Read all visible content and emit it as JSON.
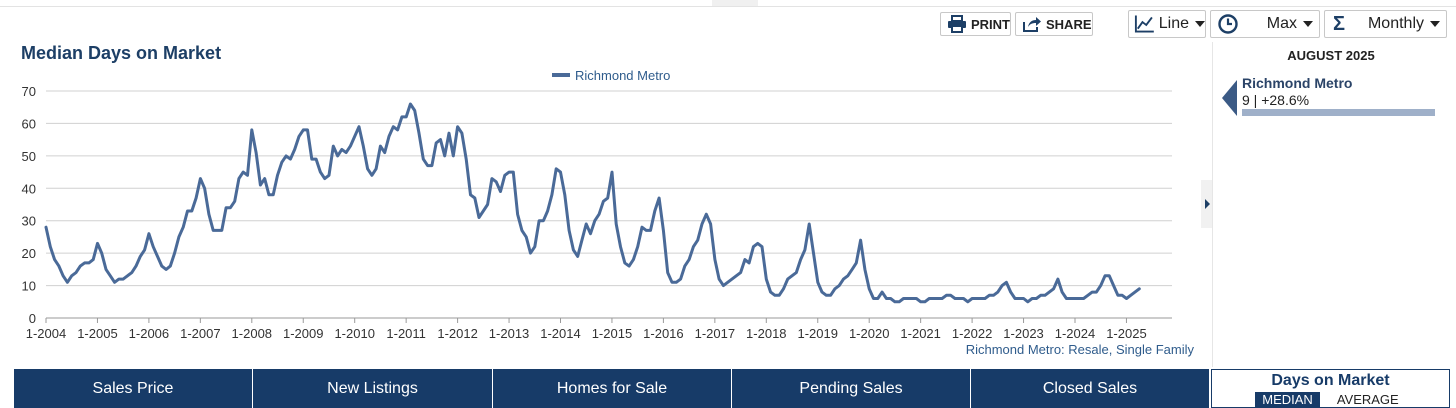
{
  "toolbar": {
    "print_label": "PRINT",
    "share_label": "SHARE",
    "chart_type": "Line",
    "range": "Max",
    "interval": "Monthly"
  },
  "legend": {
    "series_name": "Richmond Metro"
  },
  "source_label": "Richmond Metro: Resale, Single Family",
  "side_panel": {
    "date": "AUGUST 2025",
    "region": "Richmond Metro",
    "value_text": "9 | +28.6%"
  },
  "tabs": [
    "Sales Price",
    "New Listings",
    "Homes for Sale",
    "Pending Sales",
    "Closed Sales"
  ],
  "active_tab": {
    "label": "Days on Market",
    "options": [
      "MEDIAN",
      "AVERAGE"
    ],
    "selected": "MEDIAN"
  },
  "colors": {
    "series": "#4a6a98",
    "navy": "#173b68"
  },
  "chart_data": {
    "type": "line",
    "title": "Median Days on Market",
    "xlabel": "",
    "ylabel": "",
    "ylim": [
      0,
      70
    ],
    "yticks": [
      0,
      10,
      20,
      30,
      40,
      50,
      60,
      70
    ],
    "xtick_labels": [
      "1-2004",
      "1-2005",
      "1-2006",
      "1-2007",
      "1-2008",
      "1-2009",
      "1-2010",
      "1-2011",
      "1-2012",
      "1-2013",
      "1-2014",
      "1-2015",
      "1-2016",
      "1-2017",
      "1-2018",
      "1-2019",
      "1-2020",
      "1-2021",
      "1-2022",
      "1-2023",
      "1-2024",
      "1-2025"
    ],
    "start": "2004-01",
    "end": "2025-08",
    "series": [
      {
        "name": "Richmond Metro",
        "values": [
          28,
          22,
          18,
          16,
          13,
          11,
          13,
          14,
          16,
          17,
          17,
          18,
          23,
          20,
          15,
          13,
          11,
          12,
          12,
          13,
          14,
          16,
          19,
          21,
          26,
          22,
          19,
          16,
          15,
          16,
          20,
          25,
          28,
          33,
          33,
          37,
          43,
          40,
          32,
          27,
          27,
          27,
          34,
          34,
          36,
          43,
          45,
          44,
          58,
          51,
          41,
          43,
          38,
          38,
          44,
          48,
          50,
          49,
          52,
          56,
          58,
          58,
          49,
          49,
          45,
          43,
          44,
          53,
          50,
          52,
          51,
          53,
          56,
          59,
          53,
          46,
          44,
          46,
          53,
          51,
          56,
          59,
          58,
          62,
          62,
          66,
          64,
          57,
          49,
          47,
          47,
          54,
          55,
          50,
          57,
          50,
          59,
          57,
          49,
          38,
          37,
          31,
          33,
          35,
          43,
          42,
          39,
          44,
          45,
          45,
          32,
          27,
          25,
          20,
          22,
          30,
          30,
          33,
          38,
          46,
          45,
          38,
          27,
          21,
          19,
          24,
          29,
          26,
          30,
          32,
          36,
          37,
          45,
          29,
          22,
          17,
          16,
          18,
          22,
          28,
          27,
          27,
          33,
          37,
          27,
          14,
          11,
          11,
          12,
          16,
          18,
          22,
          24,
          29,
          32,
          29,
          18,
          12,
          10,
          11,
          12,
          13,
          14,
          18,
          17,
          22,
          23,
          22,
          12,
          8,
          7,
          7,
          9,
          12,
          13,
          14,
          18,
          21,
          29,
          20,
          11,
          8,
          7,
          7,
          9,
          10,
          12,
          13,
          15,
          17,
          24,
          15,
          9,
          6,
          6,
          8,
          6,
          6,
          5,
          5,
          6,
          6,
          6,
          6,
          5,
          5,
          6,
          6,
          6,
          6,
          7,
          7,
          6,
          6,
          6,
          5,
          6,
          6,
          6,
          6,
          7,
          7,
          8,
          10,
          11,
          8,
          6,
          6,
          6,
          5,
          6,
          6,
          7,
          7,
          8,
          9,
          12,
          8,
          6,
          6,
          6,
          6,
          6,
          7,
          8,
          8,
          10,
          13,
          13,
          10,
          7,
          7,
          6,
          7,
          8,
          9
        ]
      }
    ]
  }
}
